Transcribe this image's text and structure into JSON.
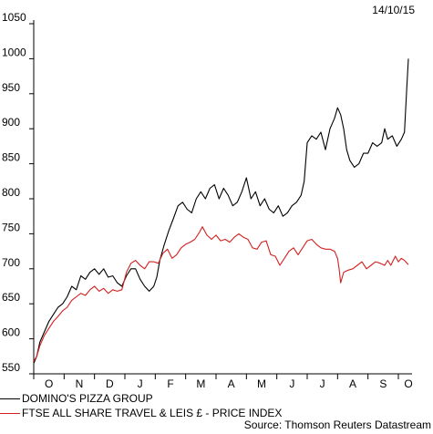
{
  "date_label": "14/10/15",
  "source": "Source: Thomson Reuters Datastream",
  "colors": {
    "series1": "#000000",
    "series2": "#d42020"
  },
  "chart_data": {
    "type": "line",
    "ylim": [
      550,
      1050
    ],
    "yticks": [
      550,
      600,
      650,
      700,
      750,
      800,
      850,
      900,
      950,
      1000,
      1050
    ],
    "x_tick_labels": [
      "O",
      "N",
      "D",
      "J",
      "F",
      "M",
      "A",
      "M",
      "J",
      "J",
      "A",
      "S",
      "O"
    ],
    "xlim": [
      0,
      12.45
    ],
    "grid": false,
    "legend_position": "bottom-left",
    "series": [
      {
        "name": "DOMINO'S PIZZA GROUP",
        "color": "#000000",
        "points": [
          [
            0.0,
            565
          ],
          [
            0.1,
            575
          ],
          [
            0.2,
            595
          ],
          [
            0.35,
            610
          ],
          [
            0.5,
            625
          ],
          [
            0.65,
            635
          ],
          [
            0.8,
            645
          ],
          [
            0.95,
            650
          ],
          [
            1.1,
            660
          ],
          [
            1.25,
            675
          ],
          [
            1.4,
            670
          ],
          [
            1.55,
            690
          ],
          [
            1.7,
            685
          ],
          [
            1.85,
            695
          ],
          [
            2.0,
            700
          ],
          [
            2.15,
            692
          ],
          [
            2.3,
            700
          ],
          [
            2.45,
            688
          ],
          [
            2.6,
            690
          ],
          [
            2.75,
            680
          ],
          [
            2.9,
            675
          ],
          [
            3.05,
            690
          ],
          [
            3.2,
            700
          ],
          [
            3.35,
            700
          ],
          [
            3.5,
            685
          ],
          [
            3.65,
            675
          ],
          [
            3.8,
            668
          ],
          [
            3.95,
            675
          ],
          [
            4.05,
            688
          ],
          [
            4.15,
            712
          ],
          [
            4.3,
            735
          ],
          [
            4.45,
            755
          ],
          [
            4.6,
            772
          ],
          [
            4.75,
            790
          ],
          [
            4.9,
            795
          ],
          [
            5.05,
            785
          ],
          [
            5.2,
            780
          ],
          [
            5.35,
            800
          ],
          [
            5.5,
            810
          ],
          [
            5.65,
            800
          ],
          [
            5.8,
            815
          ],
          [
            5.95,
            820
          ],
          [
            6.1,
            800
          ],
          [
            6.25,
            815
          ],
          [
            6.4,
            805
          ],
          [
            6.55,
            790
          ],
          [
            6.7,
            795
          ],
          [
            6.85,
            810
          ],
          [
            7.0,
            830
          ],
          [
            7.15,
            800
          ],
          [
            7.3,
            810
          ],
          [
            7.45,
            790
          ],
          [
            7.6,
            800
          ],
          [
            7.75,
            785
          ],
          [
            7.9,
            780
          ],
          [
            8.05,
            790
          ],
          [
            8.2,
            775
          ],
          [
            8.35,
            780
          ],
          [
            8.5,
            790
          ],
          [
            8.65,
            795
          ],
          [
            8.8,
            805
          ],
          [
            8.9,
            825
          ],
          [
            9.0,
            880
          ],
          [
            9.15,
            890
          ],
          [
            9.3,
            885
          ],
          [
            9.45,
            895
          ],
          [
            9.6,
            870
          ],
          [
            9.75,
            900
          ],
          [
            9.9,
            915
          ],
          [
            10.0,
            930
          ],
          [
            10.1,
            920
          ],
          [
            10.2,
            900
          ],
          [
            10.3,
            870
          ],
          [
            10.4,
            855
          ],
          [
            10.55,
            845
          ],
          [
            10.7,
            850
          ],
          [
            10.85,
            865
          ],
          [
            11.0,
            865
          ],
          [
            11.15,
            880
          ],
          [
            11.3,
            875
          ],
          [
            11.45,
            880
          ],
          [
            11.55,
            900
          ],
          [
            11.65,
            885
          ],
          [
            11.8,
            890
          ],
          [
            11.95,
            875
          ],
          [
            12.1,
            885
          ],
          [
            12.2,
            895
          ],
          [
            12.28,
            960
          ],
          [
            12.33,
            1000
          ]
        ]
      },
      {
        "name": "FTSE ALL SHARE TRAVEL & LEIS £ - PRICE INDEX",
        "color": "#d42020",
        "points": [
          [
            0.0,
            568
          ],
          [
            0.1,
            575
          ],
          [
            0.2,
            590
          ],
          [
            0.35,
            605
          ],
          [
            0.5,
            615
          ],
          [
            0.65,
            625
          ],
          [
            0.8,
            632
          ],
          [
            0.95,
            640
          ],
          [
            1.1,
            645
          ],
          [
            1.25,
            655
          ],
          [
            1.4,
            660
          ],
          [
            1.55,
            665
          ],
          [
            1.7,
            662
          ],
          [
            1.85,
            670
          ],
          [
            2.0,
            675
          ],
          [
            2.15,
            668
          ],
          [
            2.3,
            672
          ],
          [
            2.45,
            665
          ],
          [
            2.6,
            670
          ],
          [
            2.75,
            668
          ],
          [
            2.9,
            670
          ],
          [
            3.05,
            695
          ],
          [
            3.2,
            708
          ],
          [
            3.35,
            712
          ],
          [
            3.5,
            705
          ],
          [
            3.65,
            700
          ],
          [
            3.8,
            710
          ],
          [
            3.95,
            710
          ],
          [
            4.1,
            708
          ],
          [
            4.25,
            722
          ],
          [
            4.4,
            728
          ],
          [
            4.55,
            715
          ],
          [
            4.7,
            720
          ],
          [
            4.85,
            730
          ],
          [
            5.0,
            735
          ],
          [
            5.15,
            738
          ],
          [
            5.3,
            742
          ],
          [
            5.45,
            752
          ],
          [
            5.55,
            760
          ],
          [
            5.7,
            748
          ],
          [
            5.85,
            742
          ],
          [
            6.0,
            748
          ],
          [
            6.15,
            740
          ],
          [
            6.3,
            742
          ],
          [
            6.45,
            738
          ],
          [
            6.6,
            745
          ],
          [
            6.75,
            750
          ],
          [
            6.9,
            745
          ],
          [
            7.05,
            742
          ],
          [
            7.2,
            730
          ],
          [
            7.35,
            728
          ],
          [
            7.5,
            738
          ],
          [
            7.65,
            740
          ],
          [
            7.8,
            720
          ],
          [
            7.95,
            718
          ],
          [
            8.1,
            705
          ],
          [
            8.25,
            715
          ],
          [
            8.4,
            725
          ],
          [
            8.55,
            730
          ],
          [
            8.7,
            720
          ],
          [
            8.85,
            730
          ],
          [
            9.0,
            740
          ],
          [
            9.15,
            742
          ],
          [
            9.3,
            735
          ],
          [
            9.45,
            730
          ],
          [
            9.6,
            728
          ],
          [
            9.75,
            728
          ],
          [
            9.9,
            725
          ],
          [
            10.0,
            715
          ],
          [
            10.05,
            700
          ],
          [
            10.1,
            680
          ],
          [
            10.2,
            695
          ],
          [
            10.35,
            698
          ],
          [
            10.5,
            700
          ],
          [
            10.65,
            705
          ],
          [
            10.8,
            710
          ],
          [
            10.95,
            700
          ],
          [
            11.1,
            705
          ],
          [
            11.25,
            710
          ],
          [
            11.4,
            708
          ],
          [
            11.55,
            705
          ],
          [
            11.65,
            712
          ],
          [
            11.75,
            705
          ],
          [
            11.9,
            718
          ],
          [
            12.0,
            710
          ],
          [
            12.1,
            715
          ],
          [
            12.2,
            712
          ],
          [
            12.33,
            706
          ]
        ]
      }
    ]
  }
}
